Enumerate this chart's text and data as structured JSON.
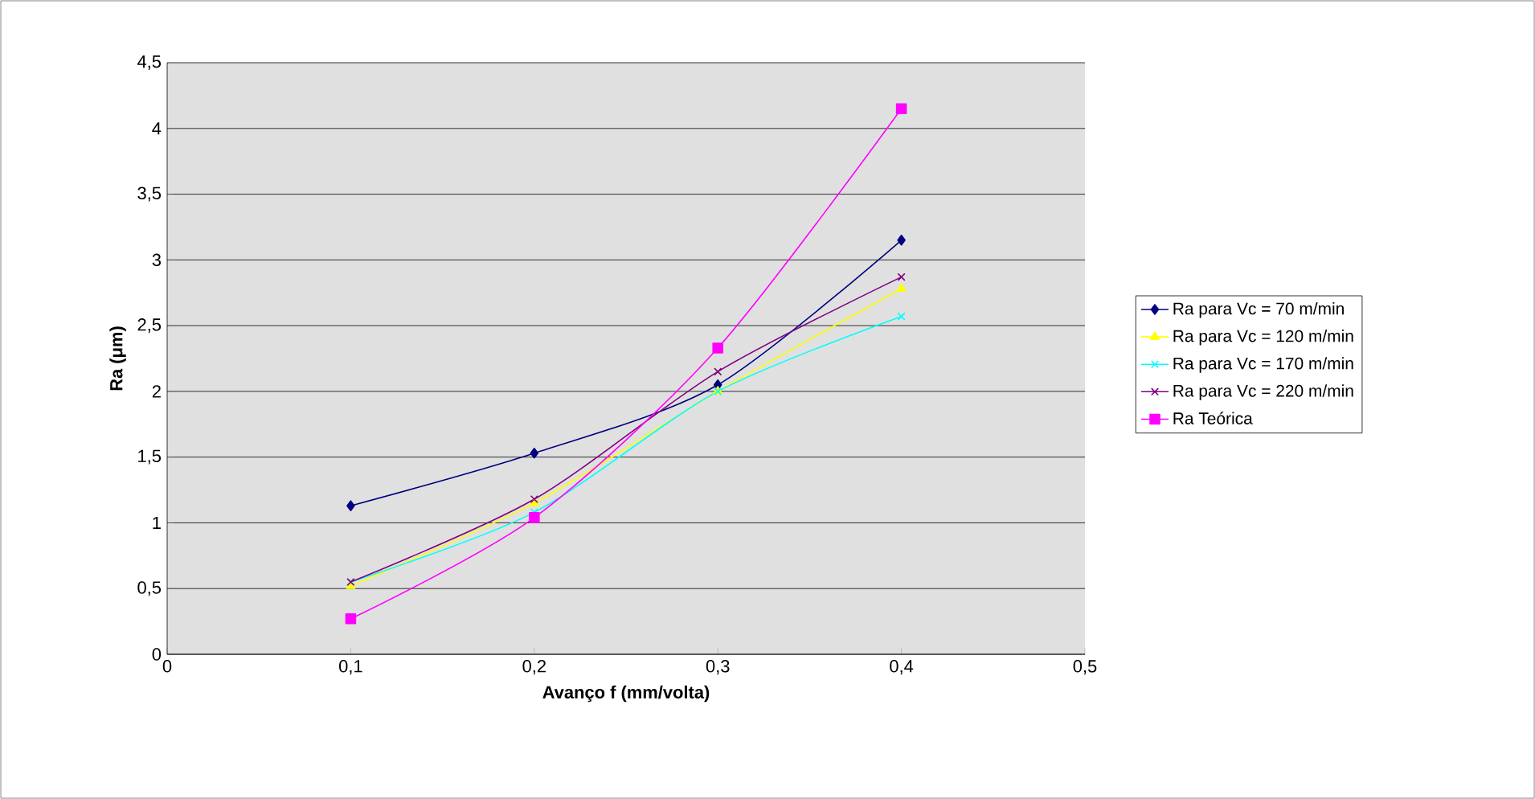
{
  "chart_data": {
    "type": "line",
    "xlabel": "Avanço f (mm/volta)",
    "ylabel": "Ra (μm)",
    "x": [
      0.1,
      0.2,
      0.3,
      0.4
    ],
    "xlim": [
      0,
      0.5
    ],
    "xticks": [
      {
        "value": 0,
        "label": "0"
      },
      {
        "value": 0.1,
        "label": "0,1"
      },
      {
        "value": 0.2,
        "label": "0,2"
      },
      {
        "value": 0.3,
        "label": "0,3"
      },
      {
        "value": 0.4,
        "label": "0,4"
      },
      {
        "value": 0.5,
        "label": "0,5"
      }
    ],
    "ylim": [
      0,
      4.5
    ],
    "yticks": [
      0,
      {
        "value": 0.5,
        "label": "0,5"
      },
      1,
      {
        "value": 1.5,
        "label": "1,5"
      },
      2,
      {
        "value": 2.5,
        "label": "2,5"
      },
      3,
      {
        "value": 3.5,
        "label": "3,5"
      },
      4,
      {
        "value": 4.5,
        "label": "4,5"
      }
    ],
    "grid": "y",
    "legend": "right",
    "series": [
      {
        "name": "Ra para Vc = 70 m/min",
        "color": "#000080",
        "marker": "diamond",
        "values": [
          1.13,
          1.53,
          2.05,
          3.15
        ]
      },
      {
        "name": "Ra para Vc = 120 m/min",
        "color": "#ffff00",
        "marker": "triangle",
        "values": [
          0.52,
          1.15,
          2.0,
          2.78
        ]
      },
      {
        "name": "Ra para Vc = 170 m/min",
        "color": "#00ffff",
        "marker": "cross",
        "values": [
          0.55,
          1.08,
          2.0,
          2.57
        ]
      },
      {
        "name": "Ra para Vc = 220 m/min",
        "color": "#800080",
        "marker": "cross",
        "values": [
          0.55,
          1.18,
          2.15,
          2.87
        ]
      },
      {
        "name": "Ra Teórica",
        "color": "#ff00ff",
        "marker": "square",
        "values": [
          0.27,
          1.04,
          2.33,
          4.15
        ]
      }
    ]
  }
}
